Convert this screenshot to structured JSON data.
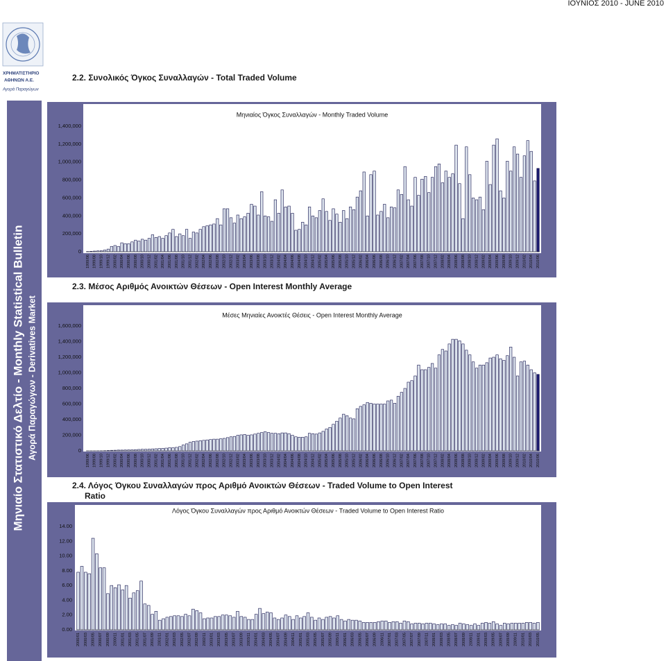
{
  "header": {
    "date": "ΙΟΥΝΙΟΣ 2010 - JUNE 2010"
  },
  "logo": {
    "name_line1": "ΧΡΗΜΑΤΙΣΤΗΡΙΟ",
    "name_line2": "ΑΘΗΝΩΝ Α.Ε.",
    "market": "Αγορά Παραγώγων"
  },
  "sidebar": {
    "title": "Μηνιαίο Στατιστικό Δελτίο - Monthly Statistical Bulletin",
    "subtitle": "Αγορά Παραγώγων - Derivatives Market"
  },
  "sections": [
    {
      "heading": "2.2. Συνολικός Όγκος Συναλλαγών - Total Traded Volume"
    },
    {
      "heading": "2.3. Μέσος Αριθμός Ανοικτών Θέσεων - Open Interest Monthly Average"
    },
    {
      "heading": "2.4. Λόγος Όγκου Συναλλαγών προς Αριθμό Ανοικτών Θέσεων - Traded Volume to Open Interest Ratio"
    }
  ],
  "chart_data": [
    {
      "type": "bar",
      "title": "Μηνιαίος Όγκος Συναλλαγών - Monthly Traded Volume",
      "color": "#dde4ee",
      "stroke": "#10104a",
      "highlight_last_color": "#1a1a6e",
      "grid": false,
      "ylim": [
        0,
        1400000
      ],
      "yticks": [
        0,
        {
          "value": 200000,
          "label": "200,000"
        },
        {
          "value": 400000,
          "label": "400,000"
        },
        {
          "value": 600000,
          "label": "600,000"
        },
        {
          "value": 800000,
          "label": "800,000"
        },
        {
          "value": 1000000,
          "label": "1,000,000"
        },
        {
          "value": 1200000,
          "label": "1,200,000"
        },
        {
          "value": 1400000,
          "label": "1,400,000"
        }
      ],
      "categories": [
        "1999/06",
        null,
        "1999/08",
        null,
        "1999/10",
        null,
        "1999/12",
        null,
        "2000/02",
        null,
        "2000/04",
        null,
        "2000/06",
        null,
        "2000/08",
        null,
        "2000/10",
        null,
        "2000/12",
        null,
        "2001/02",
        null,
        "2001/04",
        null,
        "2001/06",
        null,
        "2001/08",
        null,
        "2001/10",
        null,
        "2001/12",
        null,
        "2002/02",
        null,
        "2002/04",
        null,
        "2002/06",
        null,
        "2002/08",
        null,
        "2002/10",
        null,
        "2002/12",
        null,
        "2003/02",
        null,
        "2003/04",
        null,
        "2003/06",
        null,
        "2003/08",
        null,
        "2003/10",
        null,
        "2003/12",
        null,
        "2004/02",
        null,
        "2004/04",
        null,
        "2004/06",
        null,
        "2004/08",
        null,
        "2004/10",
        null,
        "2004/12",
        null,
        "2005/02",
        null,
        "2005/04",
        null,
        "2005/06",
        null,
        "2005/08",
        null,
        "2005/10",
        null,
        "2005/12",
        null,
        "2006/02",
        null,
        "2006/04",
        null,
        "2006/06",
        null,
        "2006/08",
        null,
        "2006/10",
        null,
        "2006/12",
        null,
        "2007/02",
        null,
        "2007/04",
        null,
        "2007/06",
        null,
        "2007/08",
        null,
        "2007/10",
        null,
        "2007/12",
        null,
        "2008/02",
        null,
        "2008/04",
        null,
        "2008/06",
        null,
        "2008/08",
        null,
        "2008/10",
        null,
        "2008/12",
        null,
        "2009/02",
        null,
        "2009/04",
        null,
        "2009/06",
        null,
        "2009/08",
        null,
        "2009/10",
        null,
        "2009/12",
        null,
        "2010/02",
        null,
        "2010/04",
        null,
        "2010/06"
      ],
      "values": [
        3000,
        5000,
        8000,
        10000,
        12000,
        20000,
        30000,
        60000,
        70000,
        60000,
        100000,
        90000,
        90000,
        110000,
        130000,
        120000,
        140000,
        130000,
        150000,
        190000,
        160000,
        170000,
        150000,
        180000,
        210000,
        250000,
        170000,
        200000,
        180000,
        250000,
        150000,
        220000,
        210000,
        250000,
        280000,
        290000,
        300000,
        310000,
        370000,
        300000,
        480000,
        480000,
        380000,
        320000,
        410000,
        370000,
        390000,
        430000,
        530000,
        510000,
        410000,
        670000,
        400000,
        390000,
        340000,
        580000,
        430000,
        690000,
        500000,
        510000,
        430000,
        240000,
        250000,
        330000,
        300000,
        500000,
        400000,
        380000,
        460000,
        590000,
        450000,
        350000,
        480000,
        420000,
        330000,
        460000,
        370000,
        500000,
        470000,
        610000,
        680000,
        890000,
        400000,
        860000,
        900000,
        410000,
        450000,
        530000,
        380000,
        500000,
        490000,
        690000,
        640000,
        950000,
        580000,
        510000,
        830000,
        630000,
        810000,
        840000,
        660000,
        830000,
        950000,
        980000,
        770000,
        900000,
        830000,
        870000,
        1190000,
        760000,
        370000,
        1170000,
        860000,
        600000,
        580000,
        610000,
        470000,
        1010000,
        750000,
        1190000,
        1260000,
        680000,
        600000,
        1010000,
        900000,
        1170000,
        1090000,
        830000,
        1070000,
        1240000,
        1120000,
        790000,
        930000
      ]
    },
    {
      "type": "bar",
      "title": "Μέσες Μηνιαίες Ανοικτές Θέσεις - Open Interest Monthly Average",
      "color": "#dde4ee",
      "stroke": "#10104a",
      "highlight_last_color": "#1a1a6e",
      "grid": false,
      "ylim": [
        0,
        1600000
      ],
      "yticks": [
        0,
        {
          "value": 200000,
          "label": "200,000"
        },
        {
          "value": 400000,
          "label": "400,000"
        },
        {
          "value": 600000,
          "label": "600,000"
        },
        {
          "value": 800000,
          "label": "800,000"
        },
        {
          "value": 1000000,
          "label": "1,000,000"
        },
        {
          "value": 1200000,
          "label": "1,200,000"
        },
        {
          "value": 1400000,
          "label": "1,400,000"
        },
        {
          "value": 1600000,
          "label": "1,600,000"
        }
      ],
      "categories": [
        "1999/06",
        null,
        "1999/08",
        null,
        "1999/10",
        null,
        "1999/12",
        null,
        "2000/02",
        null,
        "2000/04",
        null,
        "2000/06",
        null,
        "2000/08",
        null,
        "2000/10",
        null,
        "2000/12",
        null,
        "2001/02",
        null,
        "2001/04",
        null,
        "2001/06",
        null,
        "2001/08",
        null,
        "2001/10",
        null,
        "2001/12",
        null,
        "2002/02",
        null,
        "2002/04",
        null,
        "2002/06",
        null,
        "2002/08",
        null,
        "2002/10",
        null,
        "2002/12",
        null,
        "2003/02",
        null,
        "2003/04",
        null,
        "2003/06",
        null,
        "2003/08",
        null,
        "2003/10",
        null,
        "2003/12",
        null,
        "2004/02",
        null,
        "2004/04",
        null,
        "2004/06",
        null,
        "2004/08",
        null,
        "2004/10",
        null,
        "2004/12",
        null,
        "2005/02",
        null,
        "2005/04",
        null,
        "2005/06",
        null,
        "2005/08",
        null,
        "2005/10",
        null,
        "2005/12",
        null,
        "2006/02",
        null,
        "2006/04",
        null,
        "2006/06",
        null,
        "2006/08",
        null,
        "2006/10",
        null,
        "2006/12",
        null,
        "2007/02",
        null,
        "2007/04",
        null,
        "2007/06",
        null,
        "2007/08",
        null,
        "2007/10",
        null,
        "2007/12",
        null,
        "2008/02",
        null,
        "2008/04",
        null,
        "2008/06",
        null,
        "2008/08",
        null,
        "2008/10",
        null,
        "2008/12",
        null,
        "2009/02",
        null,
        "2009/04",
        null,
        "2009/06",
        null,
        "2009/08",
        null,
        "2009/10",
        null,
        "2009/12",
        null,
        "2010/02",
        null,
        "2010/04",
        null,
        "2010/06"
      ],
      "values": [
        500,
        800,
        1000,
        1500,
        2000,
        3000,
        5000,
        7000,
        8000,
        10000,
        10000,
        11000,
        12000,
        13000,
        15000,
        18000,
        20000,
        20000,
        22000,
        25000,
        27000,
        30000,
        32000,
        35000,
        40000,
        40000,
        45000,
        55000,
        75000,
        90000,
        110000,
        120000,
        125000,
        130000,
        135000,
        140000,
        145000,
        150000,
        150000,
        155000,
        160000,
        170000,
        180000,
        185000,
        200000,
        205000,
        210000,
        200000,
        205000,
        215000,
        225000,
        235000,
        245000,
        235000,
        225000,
        225000,
        220000,
        230000,
        230000,
        220000,
        200000,
        180000,
        175000,
        175000,
        180000,
        225000,
        220000,
        215000,
        230000,
        250000,
        280000,
        300000,
        340000,
        380000,
        420000,
        470000,
        450000,
        420000,
        410000,
        540000,
        570000,
        590000,
        620000,
        610000,
        600000,
        600000,
        600000,
        600000,
        640000,
        650000,
        610000,
        700000,
        750000,
        800000,
        880000,
        900000,
        960000,
        1100000,
        1040000,
        1040000,
        1070000,
        1120000,
        1060000,
        1230000,
        1300000,
        1280000,
        1370000,
        1430000,
        1430000,
        1410000,
        1370000,
        1290000,
        1230000,
        1140000,
        1060000,
        1100000,
        1100000,
        1130000,
        1190000,
        1200000,
        1230000,
        1180000,
        1160000,
        1220000,
        1330000,
        1200000,
        960000,
        1140000,
        1150000,
        1100000,
        1040000,
        1000000,
        980000
      ]
    },
    {
      "type": "bar",
      "title": "Λόγος Όγκου Συναλλαγών προς Αριθμό Ανοικτών Θέσεων - Traded Volume to Open Interest Ratio",
      "color": "#dde4ee",
      "stroke": "#10104a",
      "grid": false,
      "ylim": [
        0,
        14
      ],
      "yticks": [
        {
          "value": 0,
          "label": "0.00"
        },
        {
          "value": 2,
          "label": "2.00"
        },
        {
          "value": 4,
          "label": "4.00"
        },
        {
          "value": 6,
          "label": "6.00"
        },
        {
          "value": 8,
          "label": "8.00"
        },
        {
          "value": 10,
          "label": "10.00"
        },
        {
          "value": 12,
          "label": "12.00"
        },
        {
          "value": 14,
          "label": "14.00"
        }
      ],
      "categories": [
        "2000/01",
        null,
        "2000/03",
        null,
        "2000/05",
        null,
        "2000/07",
        null,
        "2000/09",
        null,
        "2000/11",
        null,
        "2001/01",
        null,
        "2001/03",
        null,
        "2001/05",
        null,
        "2001/07",
        null,
        "2001/09",
        null,
        "2001/11",
        null,
        "2002/01",
        null,
        "2002/03",
        null,
        "2002/05",
        null,
        "2002/07",
        null,
        "2002/09",
        null,
        "2002/11",
        null,
        "2003/01",
        null,
        "2003/03",
        null,
        "2003/05",
        null,
        "2003/07",
        null,
        "2003/09",
        null,
        "2003/11",
        null,
        "2004/01",
        null,
        "2004/03",
        null,
        "2004/05",
        null,
        "2004/07",
        null,
        "2004/09",
        null,
        "2004/11",
        null,
        "2005/01",
        null,
        "2005/03",
        null,
        "2005/05",
        null,
        "2005/07",
        null,
        "2005/09",
        null,
        "2005/11",
        null,
        "2006/01",
        null,
        "2006/03",
        null,
        "2006/05",
        null,
        "2006/07",
        null,
        "2006/09",
        null,
        "2006/11",
        null,
        "2007/01",
        null,
        "2007/03",
        null,
        "2007/05",
        null,
        "2007/07",
        null,
        "2007/09",
        null,
        "2007/11",
        null,
        "2008/01",
        null,
        "2008/03",
        null,
        "2008/05",
        null,
        "2008/07",
        null,
        "2008/09",
        null,
        "2008/11",
        null,
        "2009/01",
        null,
        "2009/03",
        null,
        "2009/05",
        null,
        "2009/07",
        null,
        "2009/09",
        null,
        "2009/11",
        null,
        "2010/01",
        null,
        "2010/03",
        null,
        "2010/05"
      ],
      "values": [
        7.8,
        8.6,
        7.8,
        7.6,
        12.4,
        10.3,
        8.4,
        8.4,
        4.9,
        6.0,
        5.7,
        6.1,
        5.4,
        6.0,
        4.3,
        5.0,
        5.3,
        6.6,
        3.5,
        3.3,
        2.1,
        2.5,
        1.3,
        1.5,
        1.7,
        1.8,
        1.9,
        1.9,
        1.8,
        2.1,
        1.9,
        2.8,
        2.6,
        2.3,
        1.5,
        1.6,
        1.6,
        1.8,
        1.8,
        2.0,
        2.0,
        1.9,
        1.7,
        2.5,
        1.8,
        1.7,
        1.4,
        1.4,
        2.1,
        2.9,
        2.2,
        2.4,
        2.3,
        1.6,
        1.4,
        1.6,
        2.0,
        1.8,
        1.4,
        1.9,
        1.6,
        1.8,
        2.3,
        1.7,
        1.3,
        1.6,
        1.4,
        1.7,
        1.8,
        1.6,
        1.9,
        1.4,
        1.2,
        1.4,
        1.3,
        1.3,
        1.2,
        1.0,
        1.0,
        1.0,
        1.0,
        1.1,
        1.2,
        1.2,
        1.0,
        1.1,
        1.1,
        0.9,
        1.2,
        1.1,
        0.8,
        0.9,
        0.9,
        0.8,
        0.9,
        0.9,
        0.8,
        0.7,
        0.8,
        0.8,
        0.6,
        0.7,
        0.6,
        0.9,
        0.8,
        0.7,
        0.6,
        0.8,
        0.6,
        0.9,
        1.0,
        0.9,
        1.1,
        0.8,
        0.6,
        0.9,
        0.8,
        0.9,
        0.9,
        0.9,
        0.9,
        1.0,
        1.0,
        0.9,
        1.0
      ]
    }
  ]
}
